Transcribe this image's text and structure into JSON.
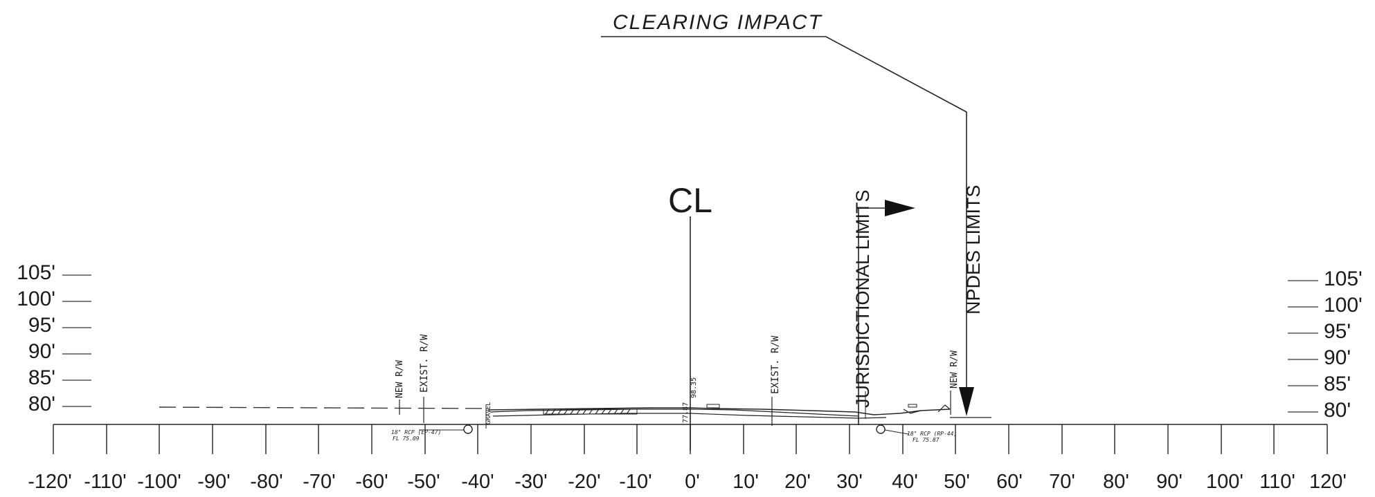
{
  "annotations": {
    "clearing_impact": "CLEARING IMPACT",
    "centerline": "CL",
    "jurisdictional_limits": "JURISDICTIONAL LIMITS",
    "npdes_limits": "NPDES LIMITS",
    "new_rw_left": "NEW R/W",
    "exist_rw_left": "EXIST. R/W",
    "exist_rw_right": "EXIST. R/W",
    "new_rw_right": "NEW R/W",
    "gravel": "GRAVEL",
    "pipe_left": "18\" RCP (EP-47)",
    "pipe_left_fl": "FL 75.09",
    "pipe_right": "18\" RCP (RP-44)",
    "pipe_right_fl": "FL 75.87",
    "cl_elev_top": "98.35",
    "cl_elev_bottom": "77.87"
  },
  "x_axis": {
    "ticks": [
      "-120'",
      "-110'",
      "-100'",
      "-90'",
      "-80'",
      "-70'",
      "-60'",
      "-50'",
      "-40'",
      "-30'",
      "-20'",
      "-10'",
      "0'",
      "10'",
      "20'",
      "30'",
      "40'",
      "50'",
      "60'",
      "70'",
      "80'",
      "90'",
      "100'",
      "110'",
      "120'"
    ]
  },
  "elevation_left": {
    "ticks": [
      "105'",
      "100'",
      "95'",
      "90'",
      "85'",
      "80'"
    ]
  },
  "elevation_right": {
    "ticks": [
      "105'",
      "100'",
      "95'",
      "90'",
      "85'",
      "80'"
    ]
  }
}
